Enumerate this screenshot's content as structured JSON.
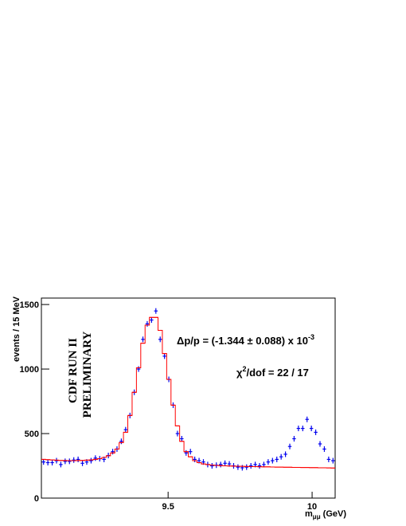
{
  "chart_data": {
    "type": "histogram",
    "y_label": "events / 15 MeV",
    "x_label": [
      "m",
      "μμ",
      " (GeV)"
    ],
    "annotations": [
      {
        "text": "Δp/p = (-1.344 ± 0.088) x 10",
        "sup": "-3"
      },
      {
        "text": "χ",
        "sup": "2",
        "rest": "/dof = 22 / 17"
      }
    ],
    "stamp": [
      "CDF RUN II",
      "PRELIMINARY"
    ],
    "xlim": [
      9.06,
      10.08
    ],
    "xticks": [
      9.5,
      10
    ],
    "ylim": [
      0,
      1550
    ],
    "yticks": [
      0,
      500,
      1000,
      1500
    ],
    "bins": [
      9.06,
      9.075,
      9.09,
      9.105,
      9.12,
      9.135,
      9.15,
      9.165,
      9.18,
      9.195,
      9.21,
      9.225,
      9.24,
      9.255,
      9.27,
      9.285,
      9.3,
      9.315,
      9.33,
      9.345,
      9.36,
      9.375,
      9.39,
      9.405,
      9.42,
      9.435,
      9.45,
      9.465,
      9.48,
      9.495,
      9.51,
      9.525,
      9.54,
      9.555,
      9.57,
      9.585,
      9.6,
      9.615,
      9.63,
      9.645,
      9.66,
      9.675,
      9.69,
      9.705,
      9.72,
      9.735,
      9.75,
      9.765,
      9.78,
      9.795,
      9.81,
      9.825,
      9.84,
      9.855,
      9.87,
      9.885,
      9.9,
      9.915,
      9.93,
      9.945,
      9.96,
      9.975,
      9.99,
      10.005,
      10.02,
      10.035,
      10.05,
      10.065,
      10.08
    ],
    "series": [
      {
        "style": "points",
        "color": "#0000ee",
        "values": [
          280,
          275,
          275,
          290,
          260,
          285,
          285,
          295,
          300,
          270,
          280,
          290,
          310,
          305,
          300,
          330,
          360,
          380,
          440,
          530,
          640,
          820,
          1000,
          1230,
          1350,
          1380,
          1450,
          1230,
          1100,
          920,
          720,
          500,
          460,
          350,
          360,
          300,
          290,
          280,
          260,
          250,
          255,
          260,
          270,
          265,
          250,
          240,
          235,
          240,
          250,
          260,
          250,
          260,
          280,
          290,
          300,
          320,
          340,
          400,
          460,
          540,
          540,
          610,
          540,
          510,
          420,
          380,
          300,
          290
        ]
      },
      {
        "style": "step",
        "color": "#ff0000",
        "values": [
          300,
          298,
          296,
          294,
          292,
          291,
          290,
          290,
          291,
          292,
          294,
          296,
          300,
          306,
          315,
          328,
          350,
          380,
          430,
          510,
          640,
          820,
          1010,
          1200,
          1340,
          1400,
          1400,
          1300,
          1120,
          920,
          720,
          560,
          440,
          360,
          320,
          290,
          275,
          265,
          260,
          256,
          253,
          252,
          250,
          249,
          248,
          247,
          246,
          245,
          244,
          244,
          243,
          242,
          242,
          241,
          240,
          240,
          239,
          239,
          238,
          238,
          237,
          237,
          236,
          236,
          235,
          235,
          234,
          233
        ]
      }
    ]
  }
}
